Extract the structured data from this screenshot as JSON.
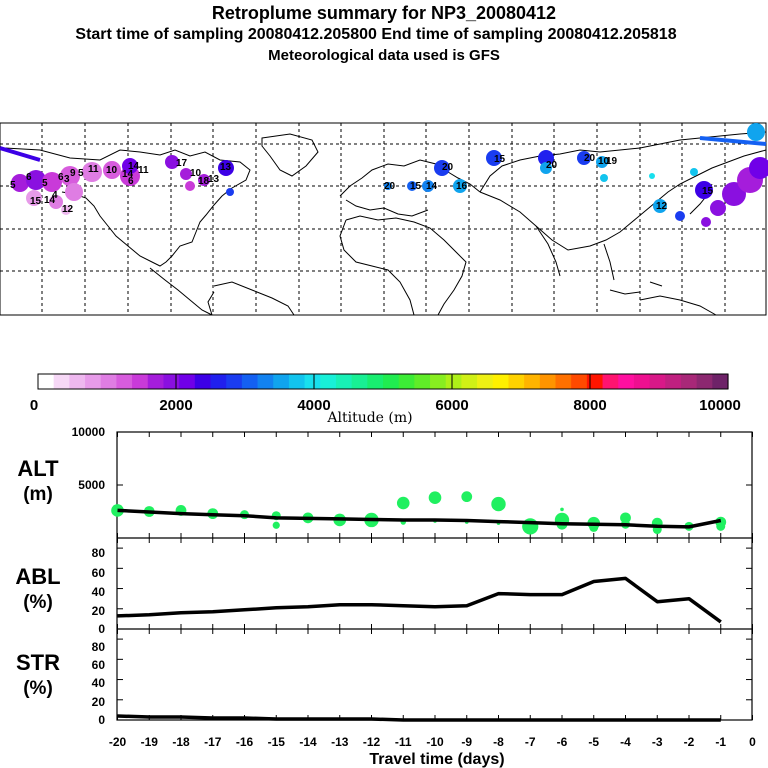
{
  "header": {
    "title": "Retroplume summary for NP3_20080412",
    "sampling": "Start time of sampling 20080412.205800     End time of sampling 20080412.205818",
    "met": "Meteorological data used is GFS"
  },
  "map": {
    "labels": [
      "5",
      "6",
      "5",
      "6",
      "9",
      "5",
      "11",
      "10",
      "14",
      "14",
      "11",
      "6",
      "3",
      "15",
      "14",
      "12",
      "4",
      "17",
      "10",
      "18",
      "13",
      "13",
      "20",
      "15",
      "14",
      "20",
      "16",
      "15",
      "20",
      "20",
      "10",
      "19",
      "12",
      "15"
    ]
  },
  "colorbar": {
    "ticks": [
      "0",
      "2000",
      "4000",
      "6000",
      "8000",
      "10000"
    ],
    "label": "Altitude (m)",
    "colors": [
      "#ffffff",
      "#f6d8f6",
      "#eeb8ef",
      "#e79be9",
      "#df7de3",
      "#d75cdd",
      "#c93ad9",
      "#a51ddb",
      "#8a10e0",
      "#7000e8",
      "#3c00e6",
      "#2020ee",
      "#1a3cf0",
      "#1460f2",
      "#1282f0",
      "#10a4ee",
      "#12c4ee",
      "#18e0ee",
      "#18f0d8",
      "#18f0b6",
      "#18f094",
      "#18ee70",
      "#20ec50",
      "#3cec36",
      "#60ec28",
      "#88ee20",
      "#aef018",
      "#d0f016",
      "#eef014",
      "#fff000",
      "#ffd200",
      "#ffb400",
      "#ff9400",
      "#ff7000",
      "#ff4a00",
      "#ff1400",
      "#ff1470",
      "#ff10a0",
      "#ee1090",
      "#d81888",
      "#c02080",
      "#a82878",
      "#8c2870",
      "#6e2268"
    ]
  },
  "axes": {
    "xlabel": "Travel time (days)",
    "xticks": [
      "-20",
      "-19",
      "-18",
      "-17",
      "-16",
      "-15",
      "-14",
      "-13",
      "-12",
      "-11",
      "-10",
      "-9",
      "-8",
      "-7",
      "-6",
      "-5",
      "-4",
      "-3",
      "-2",
      "-1",
      "0"
    ],
    "alt": {
      "title": "ALT",
      "unit": "(m)",
      "ticks": [
        "10000",
        "5000"
      ]
    },
    "abl": {
      "title": "ABL",
      "unit": "(%)",
      "ticks": [
        "80",
        "60",
        "40",
        "20",
        "0"
      ]
    },
    "str": {
      "title": "STR",
      "unit": "(%)",
      "ticks": [
        "80",
        "60",
        "40",
        "20",
        "0"
      ]
    }
  },
  "chart_data": [
    {
      "type": "line",
      "title": "ALT",
      "ylabel": "(m)",
      "xlabel": "Travel time (days)",
      "xlim": [
        -20,
        0
      ],
      "ylim": [
        0,
        10000
      ],
      "x": [
        -20,
        -19,
        -18,
        -17,
        -16,
        -15,
        -14,
        -13,
        -12,
        -11,
        -10,
        -9,
        -8,
        -7,
        -6,
        -5,
        -4,
        -3,
        -2,
        -1
      ],
      "values": [
        2600,
        2450,
        2300,
        2200,
        2100,
        1900,
        1850,
        1800,
        1750,
        1700,
        1700,
        1650,
        1550,
        1450,
        1350,
        1300,
        1250,
        1100,
        1050,
        1650
      ],
      "scatter": [
        {
          "x": -20,
          "y": 2600
        },
        {
          "x": -19,
          "y": 2500
        },
        {
          "x": -18,
          "y": 2600
        },
        {
          "x": -17,
          "y": 2300
        },
        {
          "x": -16,
          "y": 2200
        },
        {
          "x": -15,
          "y": 2100
        },
        {
          "x": -15,
          "y": 1200
        },
        {
          "x": -14,
          "y": 1900
        },
        {
          "x": -13,
          "y": 1700
        },
        {
          "x": -12,
          "y": 1700
        },
        {
          "x": -11,
          "y": 1500
        },
        {
          "x": -11,
          "y": 3300
        },
        {
          "x": -10,
          "y": 1600
        },
        {
          "x": -10,
          "y": 3800
        },
        {
          "x": -9,
          "y": 1500
        },
        {
          "x": -9,
          "y": 3900
        },
        {
          "x": -8,
          "y": 1400
        },
        {
          "x": -8,
          "y": 3200
        },
        {
          "x": -7,
          "y": 1500
        },
        {
          "x": -7,
          "y": 1100
        },
        {
          "x": -6,
          "y": 1700
        },
        {
          "x": -6,
          "y": 1300
        },
        {
          "x": -6,
          "y": 2700
        },
        {
          "x": -5,
          "y": 1400
        },
        {
          "x": -5,
          "y": 1000
        },
        {
          "x": -4,
          "y": 1900
        },
        {
          "x": -4,
          "y": 1300
        },
        {
          "x": -3,
          "y": 1400
        },
        {
          "x": -3,
          "y": 800
        },
        {
          "x": -2,
          "y": 1100
        },
        {
          "x": -1,
          "y": 1500
        },
        {
          "x": -1,
          "y": 1100
        }
      ]
    },
    {
      "type": "line",
      "title": "ABL",
      "ylabel": "(%)",
      "xlim": [
        -20,
        0
      ],
      "ylim": [
        0,
        90
      ],
      "x": [
        -20,
        -19,
        -18,
        -17,
        -16,
        -15,
        -14,
        -13,
        -12,
        -11,
        -10,
        -9,
        -8,
        -7,
        -6,
        -5,
        -4,
        -3,
        -2,
        -1
      ],
      "values": [
        13,
        14,
        16,
        17,
        19,
        21,
        22,
        24,
        24,
        23,
        22,
        23,
        35,
        34,
        34,
        47,
        50,
        27,
        30,
        7
      ]
    },
    {
      "type": "line",
      "title": "STR",
      "ylabel": "(%)",
      "xlim": [
        -20,
        0
      ],
      "ylim": [
        0,
        90
      ],
      "x": [
        -20,
        -19,
        -18,
        -17,
        -16,
        -15,
        -14,
        -13,
        -12,
        -11,
        -10,
        -9,
        -8,
        -7,
        -6,
        -5,
        -4,
        -3,
        -2,
        -1
      ],
      "values": [
        4,
        3,
        3,
        2,
        2,
        1,
        1,
        1,
        1,
        0,
        0,
        0,
        0,
        0,
        0,
        0,
        0,
        0,
        0,
        0
      ]
    }
  ]
}
